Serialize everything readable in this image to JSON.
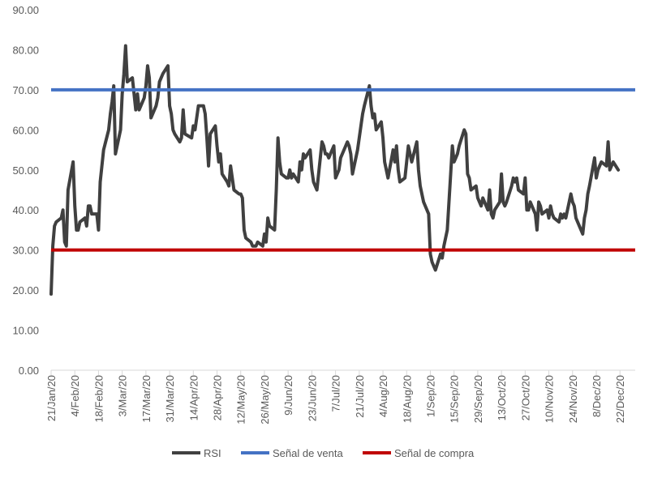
{
  "chart_data": {
    "type": "line",
    "title": "",
    "xlabel": "",
    "ylabel": "",
    "ylim": [
      0,
      90
    ],
    "y_ticks": [
      "0.00",
      "10.00",
      "20.00",
      "30.00",
      "40.00",
      "50.00",
      "60.00",
      "70.00",
      "80.00",
      "90.00"
    ],
    "grid": false,
    "legend_position": "bottom",
    "x_ticks": [
      "21/Jan/20",
      "4/Feb/20",
      "18/Feb/20",
      "3/Mar/20",
      "17/Mar/20",
      "31/Mar/20",
      "14/Apr/20",
      "28/Apr/20",
      "12/May/20",
      "26/May/20",
      "9/Jun/20",
      "23/Jun/20",
      "7/Jul/20",
      "21/Jul/20",
      "4/Aug/20",
      "18/Aug/20",
      "1/Sep/20",
      "15/Sep/20",
      "29/Sep/20",
      "13/Oct/20",
      "27/Oct/20",
      "10/Nov/20",
      "24/Nov/20",
      "8/Dec/20",
      "22/Dec/20"
    ],
    "x_range": [
      "2020-01-21",
      "2020-12-31"
    ],
    "series": [
      {
        "name": "RSI",
        "color": "#404040",
        "points": [
          [
            "2020-01-21",
            19
          ],
          [
            "2020-01-22",
            31
          ],
          [
            "2020-01-23",
            36
          ],
          [
            "2020-01-24",
            37
          ],
          [
            "2020-01-27",
            38
          ],
          [
            "2020-01-28",
            40
          ],
          [
            "2020-01-29",
            32
          ],
          [
            "2020-01-30",
            31
          ],
          [
            "2020-01-31",
            45
          ],
          [
            "2020-02-03",
            52
          ],
          [
            "2020-02-04",
            41
          ],
          [
            "2020-02-05",
            35
          ],
          [
            "2020-02-06",
            35
          ],
          [
            "2020-02-07",
            37
          ],
          [
            "2020-02-10",
            38
          ],
          [
            "2020-02-11",
            36
          ],
          [
            "2020-02-12",
            41
          ],
          [
            "2020-02-13",
            41
          ],
          [
            "2020-02-14",
            39
          ],
          [
            "2020-02-17",
            39
          ],
          [
            "2020-02-18",
            35
          ],
          [
            "2020-02-19",
            47
          ],
          [
            "2020-02-20",
            51
          ],
          [
            "2020-02-21",
            55
          ],
          [
            "2020-02-24",
            60
          ],
          [
            "2020-02-25",
            64
          ],
          [
            "2020-02-26",
            67
          ],
          [
            "2020-02-27",
            71
          ],
          [
            "2020-02-28",
            54
          ],
          [
            "2020-03-02",
            60
          ],
          [
            "2020-03-03",
            69
          ],
          [
            "2020-03-04",
            74
          ],
          [
            "2020-03-05",
            81
          ],
          [
            "2020-03-06",
            72
          ],
          [
            "2020-03-09",
            73
          ],
          [
            "2020-03-10",
            69
          ],
          [
            "2020-03-11",
            65
          ],
          [
            "2020-03-12",
            69
          ],
          [
            "2020-03-13",
            65
          ],
          [
            "2020-03-16",
            68
          ],
          [
            "2020-03-17",
            71
          ],
          [
            "2020-03-18",
            76
          ],
          [
            "2020-03-19",
            73
          ],
          [
            "2020-03-20",
            63
          ],
          [
            "2020-03-23",
            66
          ],
          [
            "2020-03-24",
            68
          ],
          [
            "2020-03-25",
            72
          ],
          [
            "2020-03-26",
            73
          ],
          [
            "2020-03-27",
            74
          ],
          [
            "2020-03-30",
            76
          ],
          [
            "2020-03-31",
            66
          ],
          [
            "2020-04-01",
            64
          ],
          [
            "2020-04-02",
            60
          ],
          [
            "2020-04-03",
            59
          ],
          [
            "2020-04-06",
            57
          ],
          [
            "2020-04-07",
            58
          ],
          [
            "2020-04-08",
            65
          ],
          [
            "2020-04-09",
            59
          ],
          [
            "2020-04-13",
            58
          ],
          [
            "2020-04-14",
            61
          ],
          [
            "2020-04-15",
            60
          ],
          [
            "2020-04-16",
            63
          ],
          [
            "2020-04-17",
            66
          ],
          [
            "2020-04-20",
            66
          ],
          [
            "2020-04-21",
            64
          ],
          [
            "2020-04-22",
            58
          ],
          [
            "2020-04-23",
            51
          ],
          [
            "2020-04-24",
            59
          ],
          [
            "2020-04-27",
            61
          ],
          [
            "2020-04-28",
            56
          ],
          [
            "2020-04-29",
            52
          ],
          [
            "2020-04-30",
            54
          ],
          [
            "2020-05-01",
            49
          ],
          [
            "2020-05-04",
            47
          ],
          [
            "2020-05-05",
            46
          ],
          [
            "2020-05-06",
            51
          ],
          [
            "2020-05-07",
            48
          ],
          [
            "2020-05-08",
            45
          ],
          [
            "2020-05-11",
            44
          ],
          [
            "2020-05-12",
            44
          ],
          [
            "2020-05-13",
            43
          ],
          [
            "2020-05-14",
            35
          ],
          [
            "2020-05-15",
            33
          ],
          [
            "2020-05-18",
            32
          ],
          [
            "2020-05-19",
            31
          ],
          [
            "2020-05-20",
            31
          ],
          [
            "2020-05-21",
            31
          ],
          [
            "2020-05-22",
            32
          ],
          [
            "2020-05-25",
            31
          ],
          [
            "2020-05-26",
            34
          ],
          [
            "2020-05-27",
            32
          ],
          [
            "2020-05-28",
            38
          ],
          [
            "2020-05-29",
            36
          ],
          [
            "2020-06-01",
            35
          ],
          [
            "2020-06-02",
            45
          ],
          [
            "2020-06-03",
            58
          ],
          [
            "2020-06-04",
            52
          ],
          [
            "2020-06-05",
            49
          ],
          [
            "2020-06-08",
            48
          ],
          [
            "2020-06-09",
            48
          ],
          [
            "2020-06-10",
            50
          ],
          [
            "2020-06-11",
            48
          ],
          [
            "2020-06-12",
            49
          ],
          [
            "2020-06-15",
            47
          ],
          [
            "2020-06-16",
            52
          ],
          [
            "2020-06-17",
            50
          ],
          [
            "2020-06-18",
            54
          ],
          [
            "2020-06-19",
            53
          ],
          [
            "2020-06-22",
            55
          ],
          [
            "2020-06-23",
            50
          ],
          [
            "2020-06-24",
            47
          ],
          [
            "2020-06-25",
            46
          ],
          [
            "2020-06-26",
            45
          ],
          [
            "2020-06-29",
            57
          ],
          [
            "2020-06-30",
            56
          ],
          [
            "2020-07-01",
            54
          ],
          [
            "2020-07-02",
            54
          ],
          [
            "2020-07-03",
            53
          ],
          [
            "2020-07-06",
            56
          ],
          [
            "2020-07-07",
            48
          ],
          [
            "2020-07-08",
            49
          ],
          [
            "2020-07-09",
            50
          ],
          [
            "2020-07-10",
            53
          ],
          [
            "2020-07-13",
            56
          ],
          [
            "2020-07-14",
            57
          ],
          [
            "2020-07-15",
            56
          ],
          [
            "2020-07-16",
            54
          ],
          [
            "2020-07-17",
            49
          ],
          [
            "2020-07-20",
            55
          ],
          [
            "2020-07-21",
            58
          ],
          [
            "2020-07-22",
            61
          ],
          [
            "2020-07-23",
            64
          ],
          [
            "2020-07-24",
            66
          ],
          [
            "2020-07-27",
            71
          ],
          [
            "2020-07-28",
            66
          ],
          [
            "2020-07-29",
            63
          ],
          [
            "2020-07-30",
            64
          ],
          [
            "2020-07-31",
            60
          ],
          [
            "2020-08-03",
            62
          ],
          [
            "2020-08-04",
            58
          ],
          [
            "2020-08-05",
            52
          ],
          [
            "2020-08-06",
            50
          ],
          [
            "2020-08-07",
            48
          ],
          [
            "2020-08-10",
            55
          ],
          [
            "2020-08-11",
            52
          ],
          [
            "2020-08-12",
            56
          ],
          [
            "2020-08-13",
            50
          ],
          [
            "2020-08-14",
            47
          ],
          [
            "2020-08-17",
            48
          ],
          [
            "2020-08-18",
            52
          ],
          [
            "2020-08-19",
            56
          ],
          [
            "2020-08-20",
            54
          ],
          [
            "2020-08-21",
            52
          ],
          [
            "2020-08-24",
            57
          ],
          [
            "2020-08-25",
            50
          ],
          [
            "2020-08-26",
            46
          ],
          [
            "2020-08-27",
            44
          ],
          [
            "2020-08-28",
            42
          ],
          [
            "2020-08-31",
            39
          ],
          [
            "2020-09-01",
            29
          ],
          [
            "2020-09-02",
            27
          ],
          [
            "2020-09-03",
            26
          ],
          [
            "2020-09-04",
            25
          ],
          [
            "2020-09-07",
            29
          ],
          [
            "2020-09-08",
            28
          ],
          [
            "2020-09-09",
            31
          ],
          [
            "2020-09-10",
            33
          ],
          [
            "2020-09-11",
            35
          ],
          [
            "2020-09-14",
            56
          ],
          [
            "2020-09-15",
            52
          ],
          [
            "2020-09-16",
            53
          ],
          [
            "2020-09-17",
            54
          ],
          [
            "2020-09-18",
            56
          ],
          [
            "2020-09-21",
            60
          ],
          [
            "2020-09-22",
            59
          ],
          [
            "2020-09-23",
            49
          ],
          [
            "2020-09-24",
            48
          ],
          [
            "2020-09-25",
            45
          ],
          [
            "2020-09-28",
            46
          ],
          [
            "2020-09-29",
            43
          ],
          [
            "2020-09-30",
            42
          ],
          [
            "2020-10-01",
            41
          ],
          [
            "2020-10-02",
            43
          ],
          [
            "2020-10-05",
            40
          ],
          [
            "2020-10-06",
            45
          ],
          [
            "2020-10-07",
            39
          ],
          [
            "2020-10-08",
            38
          ],
          [
            "2020-10-09",
            40
          ],
          [
            "2020-10-12",
            42
          ],
          [
            "2020-10-13",
            49
          ],
          [
            "2020-10-14",
            42
          ],
          [
            "2020-10-15",
            41
          ],
          [
            "2020-10-16",
            42
          ],
          [
            "2020-10-19",
            46
          ],
          [
            "2020-10-20",
            48
          ],
          [
            "2020-10-21",
            47
          ],
          [
            "2020-10-22",
            48
          ],
          [
            "2020-10-23",
            45
          ],
          [
            "2020-10-26",
            44
          ],
          [
            "2020-10-27",
            48
          ],
          [
            "2020-10-28",
            40
          ],
          [
            "2020-10-29",
            40
          ],
          [
            "2020-10-30",
            42
          ],
          [
            "2020-11-02",
            39
          ],
          [
            "2020-11-03",
            35
          ],
          [
            "2020-11-04",
            42
          ],
          [
            "2020-11-05",
            41
          ],
          [
            "2020-11-06",
            39
          ],
          [
            "2020-11-09",
            40
          ],
          [
            "2020-11-10",
            38
          ],
          [
            "2020-11-11",
            41
          ],
          [
            "2020-11-12",
            39
          ],
          [
            "2020-11-13",
            38
          ],
          [
            "2020-11-16",
            37
          ],
          [
            "2020-11-17",
            39
          ],
          [
            "2020-11-18",
            38
          ],
          [
            "2020-11-19",
            39
          ],
          [
            "2020-11-20",
            38
          ],
          [
            "2020-11-23",
            44
          ],
          [
            "2020-11-24",
            42
          ],
          [
            "2020-11-25",
            41
          ],
          [
            "2020-11-26",
            38
          ],
          [
            "2020-11-27",
            37
          ],
          [
            "2020-11-30",
            34
          ],
          [
            "2020-12-01",
            38
          ],
          [
            "2020-12-02",
            40
          ],
          [
            "2020-12-03",
            44
          ],
          [
            "2020-12-04",
            46
          ],
          [
            "2020-12-07",
            53
          ],
          [
            "2020-12-08",
            48
          ],
          [
            "2020-12-09",
            50
          ],
          [
            "2020-12-10",
            51
          ],
          [
            "2020-12-11",
            52
          ],
          [
            "2020-12-14",
            51
          ],
          [
            "2020-12-15",
            57
          ],
          [
            "2020-12-16",
            50
          ],
          [
            "2020-12-17",
            51
          ],
          [
            "2020-12-18",
            52
          ],
          [
            "2020-12-21",
            50
          ]
        ]
      },
      {
        "name": "Señal de venta",
        "color": "#4472C4",
        "constant": 70
      },
      {
        "name": "Señal de compra",
        "color": "#C00000",
        "constant": 30
      }
    ]
  }
}
